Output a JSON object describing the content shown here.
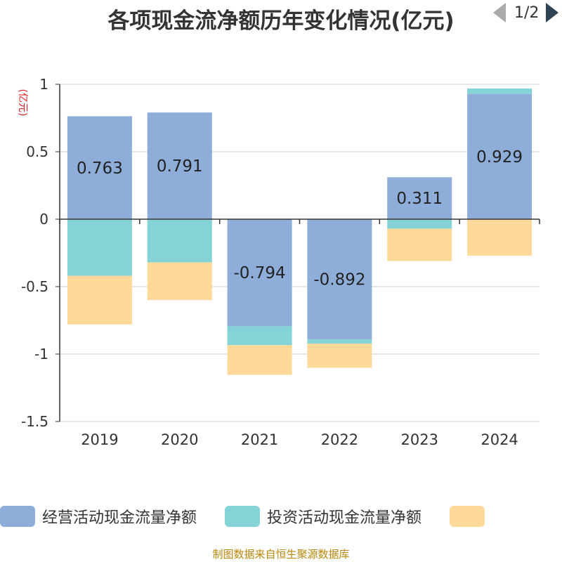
{
  "chart_data": {
    "type": "bar",
    "stacked": true,
    "title": "各项现金流净额历年变化情况(亿元)",
    "ylabel": "(亿元)",
    "xlabel": "",
    "ylim": [
      -1.5,
      1
    ],
    "yticks": [
      1,
      0.5,
      0,
      -0.5,
      -1,
      -1.5
    ],
    "ytick_labels": [
      "1",
      "0.5",
      "0",
      "-0.5",
      "-1",
      "-1.5"
    ],
    "categories": [
      "2019",
      "2020",
      "2021",
      "2022",
      "2023",
      "2024"
    ],
    "grid": true,
    "series": [
      {
        "name": "经营活动现金流量净额",
        "color": "#8eaed9",
        "values": [
          0.763,
          0.791,
          -0.794,
          -0.892,
          0.311,
          0.929
        ],
        "labels": [
          "0.763",
          "0.791",
          "-0.794",
          "-0.892",
          "0.311",
          "0.929"
        ]
      },
      {
        "name": "投资活动现金流量净额",
        "color": "#84d3d6",
        "values": [
          -0.42,
          -0.32,
          -0.14,
          -0.03,
          -0.07,
          0.04
        ]
      },
      {
        "name": "",
        "color": "#fed999",
        "values": [
          -0.36,
          -0.28,
          -0.22,
          -0.18,
          -0.24,
          -0.27
        ]
      }
    ]
  },
  "legend": {
    "pager_text": "1/2"
  },
  "footer": {
    "source": "制图数据来自恒生聚源数据库"
  }
}
